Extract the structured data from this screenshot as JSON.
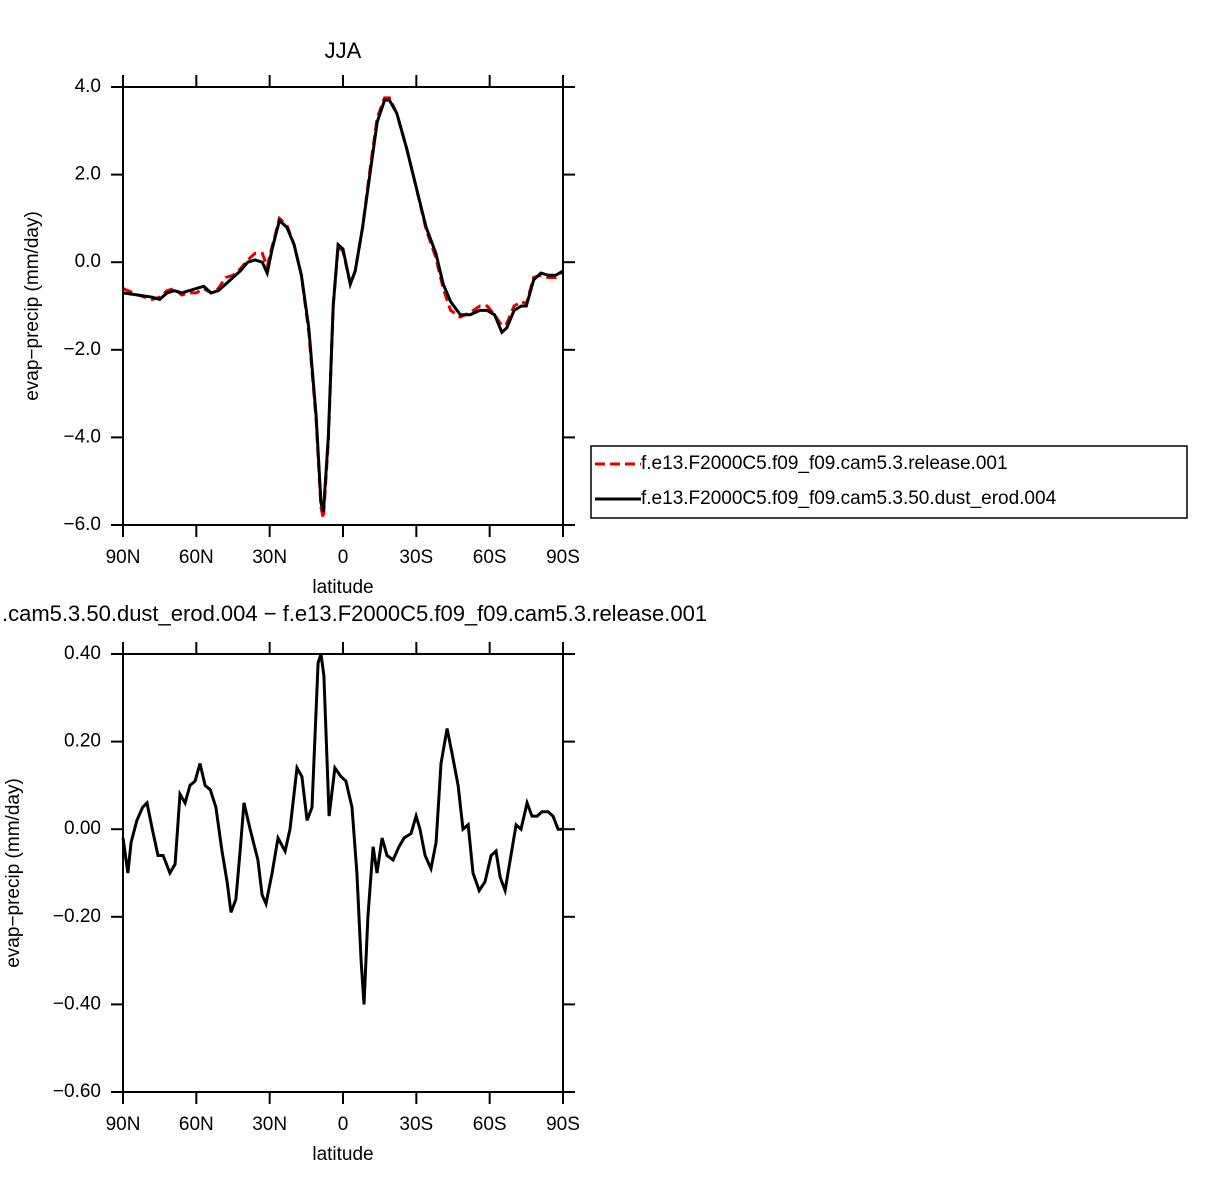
{
  "chart_data": [
    {
      "type": "line",
      "title": "JJA",
      "xlabel": "latitude",
      "ylabel": "evap−precip (mm/day)",
      "xlim": [
        90,
        -90
      ],
      "xticks": [
        {
          "value": 90,
          "label": "90N"
        },
        {
          "value": 60,
          "label": "60N"
        },
        {
          "value": 30,
          "label": "30N"
        },
        0,
        {
          "value": -30,
          "label": "30S"
        },
        {
          "value": -60,
          "label": "60S"
        },
        {
          "value": -90,
          "label": "90S"
        }
      ],
      "ylim": [
        -6,
        4
      ],
      "yticks": [
        {
          "value": 4,
          "label": "4.0"
        },
        {
          "value": 2,
          "label": "2.0"
        },
        {
          "value": 0,
          "label": "0.0"
        },
        {
          "value": -2,
          "label": "−2.0"
        },
        {
          "value": -4,
          "label": "−4.0"
        },
        {
          "value": -6,
          "label": "−6.0"
        }
      ],
      "legend": "right",
      "x": [
        90,
        84,
        78,
        75,
        72,
        69,
        66,
        63,
        60,
        57,
        54,
        51,
        48,
        45,
        42,
        39,
        36,
        33,
        31,
        29,
        26,
        23,
        20,
        17,
        14,
        11,
        9,
        8,
        6,
        4,
        2,
        0,
        -3,
        -5,
        -8,
        -11,
        -14,
        -17,
        -19,
        -22,
        -26,
        -30,
        -34,
        -38,
        -41,
        -44,
        -48,
        -52,
        -56,
        -59,
        -62,
        -65,
        -67,
        -70,
        -73,
        -75,
        -78,
        -81,
        -84,
        -87,
        -90
      ],
      "series": [
        {
          "name": "f.e13.F2000C5.f09_f09.cam5.3.release.001",
          "color": "#e00000",
          "line_style": "dashed",
          "values": [
            -0.6,
            -0.75,
            -0.85,
            -0.8,
            -0.65,
            -0.6,
            -0.75,
            -0.7,
            -0.7,
            -0.6,
            -0.7,
            -0.6,
            -0.35,
            -0.3,
            -0.15,
            0.05,
            0.2,
            0.2,
            -0.1,
            0.35,
            1.0,
            0.85,
            0.4,
            -0.3,
            -1.6,
            -3.6,
            -5.6,
            -5.85,
            -4.1,
            -1.0,
            0.35,
            0.25,
            -0.5,
            -0.2,
            0.8,
            2.1,
            3.3,
            3.75,
            3.75,
            3.4,
            2.6,
            1.7,
            0.75,
            0.1,
            -0.6,
            -1.1,
            -1.25,
            -1.15,
            -1.0,
            -1.0,
            -1.2,
            -1.45,
            -1.4,
            -1.0,
            -0.9,
            -0.95,
            -0.35,
            -0.3,
            -0.35,
            -0.35,
            -0.2
          ]
        },
        {
          "name": "f.e13.F2000C5.f09_f09.cam5.3.50.dust_erod.004",
          "color": "#000000",
          "line_style": "solid",
          "values": [
            -0.7,
            -0.75,
            -0.8,
            -0.85,
            -0.7,
            -0.65,
            -0.7,
            -0.65,
            -0.6,
            -0.55,
            -0.7,
            -0.65,
            -0.5,
            -0.35,
            -0.2,
            0.0,
            0.05,
            0.0,
            -0.25,
            0.3,
            0.95,
            0.8,
            0.4,
            -0.3,
            -1.5,
            -3.5,
            -5.5,
            -5.7,
            -4.0,
            -1.0,
            0.4,
            0.3,
            -0.5,
            -0.2,
            0.8,
            2.0,
            3.2,
            3.7,
            3.7,
            3.4,
            2.6,
            1.7,
            0.8,
            0.2,
            -0.5,
            -0.9,
            -1.2,
            -1.2,
            -1.1,
            -1.1,
            -1.2,
            -1.6,
            -1.5,
            -1.1,
            -1.0,
            -1.0,
            -0.4,
            -0.25,
            -0.3,
            -0.3,
            -0.2
          ]
        }
      ]
    },
    {
      "type": "line",
      "title": ".cam5.3.50.dust_erod.004 − f.e13.F2000C5.f09_f09.cam5.3.release.001",
      "xlabel": "latitude",
      "ylabel": "evap−precip (mm/day)",
      "xlim": [
        90,
        -90
      ],
      "xticks": [
        {
          "value": 90,
          "label": "90N"
        },
        {
          "value": 60,
          "label": "60N"
        },
        {
          "value": 30,
          "label": "30N"
        },
        0,
        {
          "value": -30,
          "label": "30S"
        },
        {
          "value": -60,
          "label": "60S"
        },
        {
          "value": -90,
          "label": "90S"
        }
      ],
      "ylim": [
        -0.6,
        0.4
      ],
      "yticks": [
        {
          "value": 0.4,
          "label": "0.40"
        },
        {
          "value": 0.2,
          "label": "0.20"
        },
        {
          "value": 0,
          "label": "0.00"
        },
        {
          "value": -0.2,
          "label": "−0.20"
        },
        {
          "value": -0.4,
          "label": "−0.40"
        },
        {
          "value": -0.6,
          "label": "−0.60"
        }
      ],
      "x": [
        90,
        88,
        86.7,
        84.3,
        82,
        80.2,
        78,
        75.7,
        73.6,
        70.8,
        68.7,
        66.7,
        64.6,
        62.6,
        60.5,
        58.5,
        56.4,
        54.3,
        52,
        49.5,
        47.4,
        45.8,
        43.8,
        42.1,
        40.5,
        38,
        34.8,
        33.1,
        31.5,
        29,
        26.6,
        23.7,
        21.7,
        18.8,
        16.8,
        14.7,
        12.7,
        10.2,
        9,
        7.8,
        5.7,
        3.3,
        0.8,
        -1.2,
        -3.7,
        -5.7,
        -7.4,
        -8.6,
        -10.2,
        -12.3,
        -13.9,
        -16,
        -18,
        -20.5,
        -22.9,
        -25,
        -27.8,
        -29.9,
        -31.5,
        -33.6,
        -36,
        -38.1,
        -40.1,
        -42.6,
        -44.7,
        -47.1,
        -49.1,
        -51.2,
        -53.2,
        -55.7,
        -58.1,
        -60.6,
        -62.6,
        -64.3,
        -66.3,
        -68.4,
        -70.8,
        -72.8,
        -75.3,
        -77.3,
        -79.4,
        -81.4,
        -83.9,
        -85.9,
        -88,
        -90
      ],
      "series": [
        {
          "color": "#000000",
          "line_style": "solid",
          "values": [
            -0.02,
            -0.1,
            -0.03,
            0.02,
            0.05,
            0.06,
            0.0,
            -0.06,
            -0.06,
            -0.1,
            -0.08,
            0.08,
            0.06,
            0.1,
            0.11,
            0.15,
            0.1,
            0.09,
            0.05,
            -0.05,
            -0.12,
            -0.19,
            -0.16,
            -0.05,
            0.06,
            0.0,
            -0.07,
            -0.15,
            -0.17,
            -0.1,
            -0.02,
            -0.05,
            0.0,
            0.14,
            0.12,
            0.02,
            0.05,
            0.38,
            0.4,
            0.35,
            0.03,
            0.14,
            0.12,
            0.11,
            0.05,
            -0.1,
            -0.3,
            -0.4,
            -0.2,
            -0.04,
            -0.1,
            -0.02,
            -0.06,
            -0.07,
            -0.04,
            -0.02,
            -0.01,
            0.03,
            0.0,
            -0.06,
            -0.09,
            -0.03,
            0.15,
            0.23,
            0.17,
            0.1,
            0.0,
            0.01,
            -0.1,
            -0.14,
            -0.12,
            -0.06,
            -0.05,
            -0.11,
            -0.14,
            -0.07,
            0.01,
            0.0,
            0.06,
            0.03,
            0.03,
            0.04,
            0.04,
            0.03,
            0.0,
            0.0
          ]
        }
      ]
    }
  ]
}
